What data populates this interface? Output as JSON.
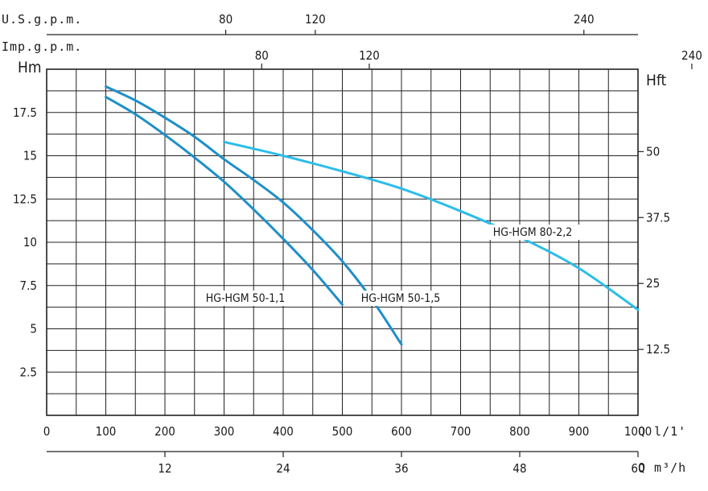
{
  "chart_data": {
    "type": "line",
    "title": "",
    "x": {
      "label": "Q l/1'",
      "lim": [
        0,
        1000
      ],
      "ticks": [
        {
          "v": 0,
          "t": "0"
        },
        {
          "v": 100,
          "t": "100"
        },
        {
          "v": 200,
          "t": "200"
        },
        {
          "v": 300,
          "t": "300"
        },
        {
          "v": 400,
          "t": "400"
        },
        {
          "v": 500,
          "t": "500"
        },
        {
          "v": 600,
          "t": "600"
        },
        {
          "v": 700,
          "t": "700"
        },
        {
          "v": 800,
          "t": "800"
        },
        {
          "v": 900,
          "t": "900"
        },
        {
          "v": 1000,
          "t": "1000"
        }
      ]
    },
    "x_m3h": {
      "label": "Q m³/h",
      "ticks": [
        {
          "v": 12,
          "t": "12"
        },
        {
          "v": 24,
          "t": "24"
        },
        {
          "v": 36,
          "t": "36"
        },
        {
          "v": 48,
          "t": "48"
        },
        {
          "v": 60,
          "t": "60"
        }
      ]
    },
    "x_usgpm": {
      "label": "U.S.g.p.m.",
      "ticks": [
        {
          "v": 80,
          "t": "80"
        },
        {
          "v": 120,
          "t": "120"
        },
        {
          "v": 240,
          "t": "240"
        }
      ]
    },
    "x_impgpm": {
      "label": "Imp.g.p.m.",
      "ticks": [
        {
          "v": 80,
          "t": "80"
        },
        {
          "v": 120,
          "t": "120"
        },
        {
          "v": 240,
          "t": "240"
        }
      ]
    },
    "y": {
      "label": "Hm",
      "lim": [
        0,
        20
      ],
      "ticks": [
        {
          "v": 2.5,
          "t": "2.5"
        },
        {
          "v": 5,
          "t": "5"
        },
        {
          "v": 7.5,
          "t": "7.5"
        },
        {
          "v": 10,
          "t": "10"
        },
        {
          "v": 12.5,
          "t": "12.5"
        },
        {
          "v": 15,
          "t": "15"
        },
        {
          "v": 17.5,
          "t": "17.5"
        }
      ]
    },
    "y_ft": {
      "label": "Hft",
      "ticks": [
        {
          "v": 12.5,
          "t": "12.5"
        },
        {
          "v": 25,
          "t": "25"
        },
        {
          "v": 37.5,
          "t": "37.5"
        },
        {
          "v": 50,
          "t": "50"
        }
      ]
    },
    "grid": true,
    "series": [
      {
        "name": "HG-HGM 50-1,1",
        "color": "#1e8fc8",
        "points": [
          [
            100,
            18.4
          ],
          [
            150,
            17.4
          ],
          [
            200,
            16.2
          ],
          [
            250,
            14.9
          ],
          [
            300,
            13.5
          ],
          [
            350,
            11.9
          ],
          [
            400,
            10.2
          ],
          [
            450,
            8.4
          ],
          [
            500,
            6.4
          ]
        ]
      },
      {
        "name": "HG-HGM 50-1,5",
        "color": "#1e8fc8",
        "points": [
          [
            100,
            19.0
          ],
          [
            150,
            18.2
          ],
          [
            200,
            17.2
          ],
          [
            250,
            16.1
          ],
          [
            300,
            14.8
          ],
          [
            350,
            13.6
          ],
          [
            400,
            12.3
          ],
          [
            450,
            10.7
          ],
          [
            500,
            8.9
          ],
          [
            550,
            6.7
          ],
          [
            600,
            4.1
          ]
        ]
      },
      {
        "name": "HG-HGM 80-2,2",
        "color": "#2bbde9",
        "points": [
          [
            300,
            15.8
          ],
          [
            400,
            15.0
          ],
          [
            500,
            14.1
          ],
          [
            600,
            13.1
          ],
          [
            700,
            11.8
          ],
          [
            800,
            10.3
          ],
          [
            900,
            8.5
          ],
          [
            1000,
            6.1
          ]
        ]
      }
    ]
  }
}
